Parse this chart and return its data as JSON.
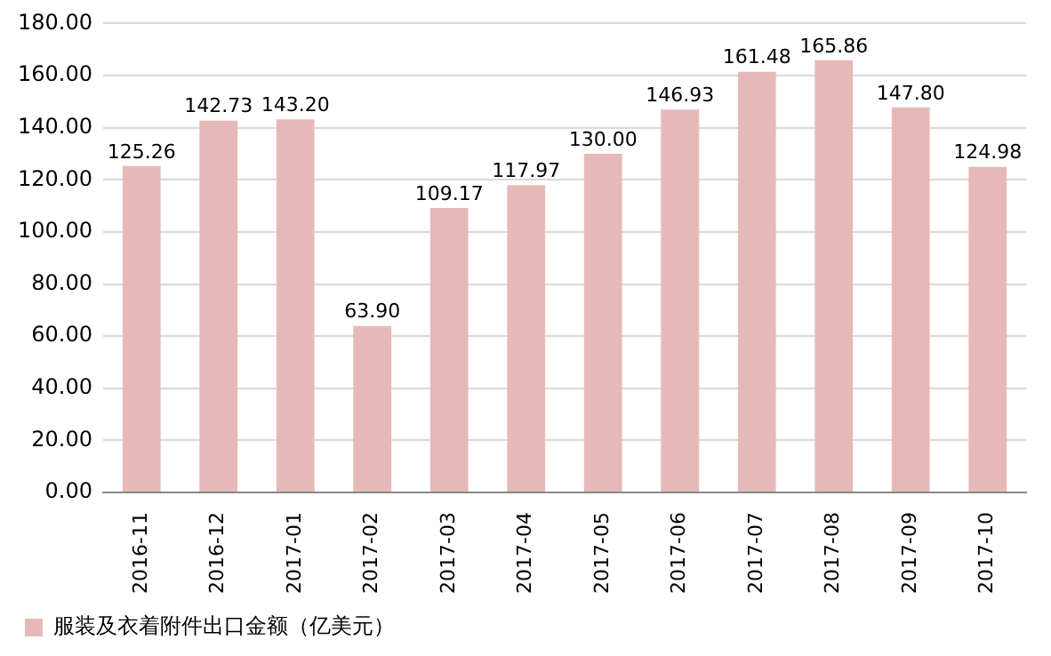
{
  "chart_data": {
    "type": "bar",
    "categories": [
      "2016-11",
      "2016-12",
      "2017-01",
      "2017-02",
      "2017-03",
      "2017-04",
      "2017-05",
      "2017-06",
      "2017-07",
      "2017-08",
      "2017-09",
      "2017-10"
    ],
    "series": [
      {
        "name": "服装及衣着附件出口金额（亿美元）",
        "color": "#e6b9b8",
        "values": [
          125.26,
          142.73,
          143.2,
          63.9,
          109.17,
          117.97,
          130,
          146.93,
          161.48,
          165.86,
          147.8,
          124.98
        ],
        "value_labels": [
          "125.26",
          "142.73",
          "143.20",
          "63.90",
          "109.17",
          "117.97",
          "130.00",
          "146.93",
          "161.48",
          "165.86",
          "147.80",
          "124.98"
        ]
      }
    ],
    "ylim": [
      0,
      180
    ],
    "yticks": [
      {
        "value": 0,
        "label": "0.00"
      },
      {
        "value": 20,
        "label": "20.00"
      },
      {
        "value": 40,
        "label": "40.00"
      },
      {
        "value": 60,
        "label": "60.00"
      },
      {
        "value": 80,
        "label": "80.00"
      },
      {
        "value": 100,
        "label": "100.00"
      },
      {
        "value": 120,
        "label": "120.00"
      },
      {
        "value": 140,
        "label": "140.00"
      },
      {
        "value": 160,
        "label": "160.00"
      },
      {
        "value": 180,
        "label": "180.00"
      }
    ],
    "grid": "y",
    "legend": "bottom left"
  }
}
